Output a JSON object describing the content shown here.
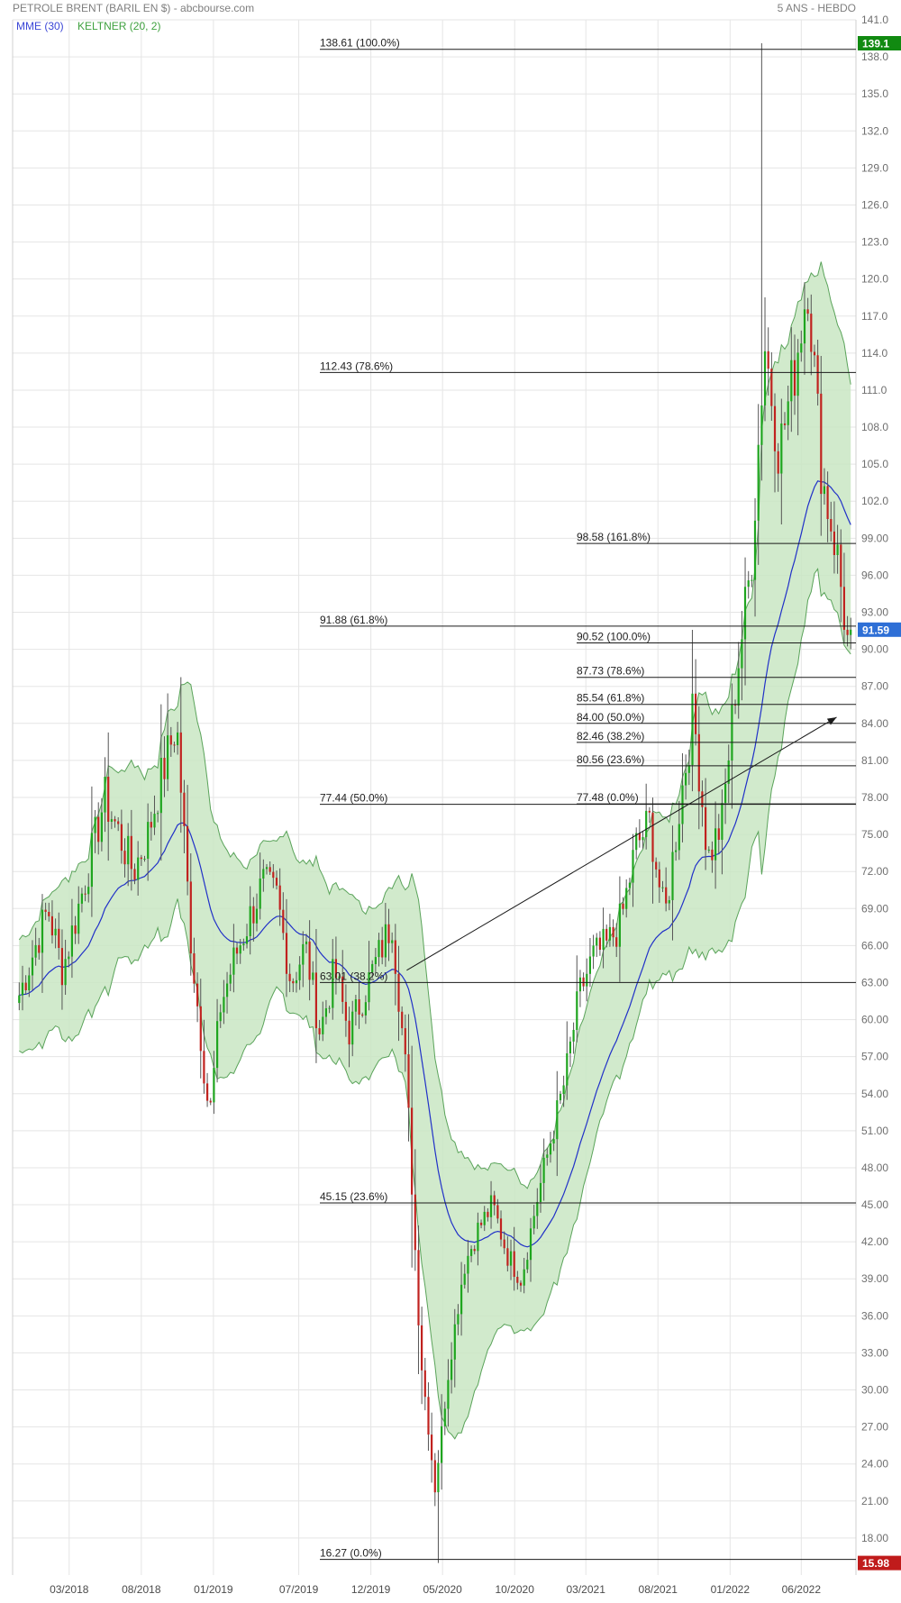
{
  "header": {
    "title": "PETROLE BRENT (BARIL EN $) - abcbourse.com",
    "period": "5 ANS - HEBDO"
  },
  "legend": {
    "mme": "MME (30)",
    "keltner": "KELTNER (20, 2)"
  },
  "colors": {
    "up": "#1fa51f",
    "down": "#c0221f",
    "mme": "#2030c8",
    "keltner_fill": "#c9e6c3",
    "keltner_line": "#5aa35a",
    "grid": "#e5e5e5",
    "max_badge": "#118a11",
    "last_badge": "#2e6fd6",
    "min_badge": "#c01b1b"
  },
  "price_badges": {
    "high": "139.1",
    "last": "91.59",
    "low": "15.98"
  },
  "chart_data": {
    "type": "candlestick",
    "title": "PETROLE BRENT (BARIL EN $)",
    "frequency": "weekly",
    "x_range": [
      "2017-11",
      "2022-09"
    ],
    "x_ticks": [
      "03/2018",
      "08/2018",
      "01/2019",
      "07/2019",
      "12/2019",
      "05/2020",
      "10/2020",
      "03/2021",
      "08/2021",
      "01/2022",
      "06/2022"
    ],
    "ylim": [
      15,
      141
    ],
    "y_ticks": [
      18,
      21,
      24,
      27,
      30,
      33,
      36,
      39,
      42,
      45,
      48,
      51,
      54,
      57,
      60,
      63,
      66,
      69,
      72,
      75,
      78,
      81,
      84,
      87,
      90,
      93,
      96,
      99,
      102,
      105,
      108,
      111,
      114,
      117,
      120,
      123,
      126,
      129,
      132,
      135,
      138,
      141
    ],
    "y_tick_labels": [
      "18.00",
      "21.00",
      "24.00",
      "27.00",
      "30.00",
      "33.00",
      "36.00",
      "39.00",
      "42.00",
      "45.00",
      "48.00",
      "51.00",
      "54.00",
      "57.00",
      "60.00",
      "63.00",
      "66.00",
      "69.00",
      "72.00",
      "75.00",
      "78.00",
      "81.00",
      "84.00",
      "87.00",
      "90.00",
      "93.00",
      "96.00",
      "99.00",
      "102.0",
      "105.0",
      "108.0",
      "111.0",
      "114.0",
      "117.0",
      "120.0",
      "123.0",
      "126.0",
      "129.0",
      "132.0",
      "135.0",
      "138.0",
      "141.0"
    ],
    "grid": true,
    "indicators": [
      "MME (30)",
      "KELTNER (20, 2)"
    ],
    "price_anchors": [
      [
        "2017-11",
        62.0
      ],
      [
        "2018-01",
        69.0
      ],
      [
        "2018-02",
        64.0
      ],
      [
        "2018-04",
        73.0
      ],
      [
        "2018-05",
        78.0
      ],
      [
        "2018-06",
        75.0
      ],
      [
        "2018-07",
        72.0
      ],
      [
        "2018-08",
        75.0
      ],
      [
        "2018-09",
        80.0
      ],
      [
        "2018-10",
        84.0
      ],
      [
        "2018-11",
        66.0
      ],
      [
        "2018-12",
        55.0
      ],
      [
        "2018-12-24",
        52.0
      ],
      [
        "2019-01",
        61.0
      ],
      [
        "2019-02",
        65.0
      ],
      [
        "2019-04",
        71.0
      ],
      [
        "2019-05",
        70.0
      ],
      [
        "2019-06",
        63.0
      ],
      [
        "2019-07",
        66.0
      ],
      [
        "2019-08",
        59.0
      ],
      [
        "2019-09",
        64.0
      ],
      [
        "2019-10",
        59.0
      ],
      [
        "2019-11",
        62.0
      ],
      [
        "2020-01",
        68.0
      ],
      [
        "2020-02",
        55.0
      ],
      [
        "2020-03",
        33.0
      ],
      [
        "2020-04",
        22.0
      ],
      [
        "2020-05",
        32.0
      ],
      [
        "2020-06",
        40.0
      ],
      [
        "2020-07",
        43.0
      ],
      [
        "2020-08",
        45.0
      ],
      [
        "2020-09",
        41.0
      ],
      [
        "2020-10",
        39.0
      ],
      [
        "2020-11",
        45.0
      ],
      [
        "2020-12",
        50.0
      ],
      [
        "2021-01",
        55.0
      ],
      [
        "2021-02",
        62.0
      ],
      [
        "2021-03",
        65.0
      ],
      [
        "2021-04",
        66.0
      ],
      [
        "2021-05",
        68.0
      ],
      [
        "2021-06",
        74.0
      ],
      [
        "2021-07",
        76.0
      ],
      [
        "2021-08",
        68.0
      ],
      [
        "2021-09",
        77.0
      ],
      [
        "2021-10",
        85.0
      ],
      [
        "2021-11",
        73.0
      ],
      [
        "2021-12",
        76.0
      ],
      [
        "2022-01",
        88.0
      ],
      [
        "2022-02",
        97.0
      ],
      [
        "2022-03",
        115.0
      ],
      [
        "2022-04",
        106.0
      ],
      [
        "2022-05",
        112.0
      ],
      [
        "2022-06",
        120.0
      ],
      [
        "2022-07",
        104.0
      ],
      [
        "2022-08",
        98.0
      ],
      [
        "2022-09",
        88.0
      ],
      [
        "2022-09-20",
        91.59
      ]
    ],
    "extremes": {
      "high": 139.1,
      "low": 15.98,
      "last": 91.59
    },
    "fibonacci": [
      {
        "price": 138.61,
        "label": "138.61  (100.0%)",
        "group": "A"
      },
      {
        "price": 112.43,
        "label": "112.43  (78.6%)",
        "group": "A"
      },
      {
        "price": 91.88,
        "label": "91.88  (61.8%)",
        "group": "A"
      },
      {
        "price": 77.44,
        "label": "77.44  (50.0%)",
        "group": "A"
      },
      {
        "price": 63.01,
        "label": "63.01  (38.2%)",
        "group": "A"
      },
      {
        "price": 45.15,
        "label": "45.15  (23.6%)",
        "group": "A"
      },
      {
        "price": 16.27,
        "label": "16.27  (0.0%)",
        "group": "A"
      },
      {
        "price": 98.58,
        "label": "98.58  (161.8%)",
        "group": "B"
      },
      {
        "price": 90.52,
        "label": "90.52  (100.0%)",
        "group": "B"
      },
      {
        "price": 87.73,
        "label": "87.73  (78.6%)",
        "group": "B"
      },
      {
        "price": 85.54,
        "label": "85.54  (61.8%)",
        "group": "B"
      },
      {
        "price": 84.0,
        "label": "84.00  (50.0%)",
        "group": "B"
      },
      {
        "price": 82.46,
        "label": "82.46  (38.2%)",
        "group": "B"
      },
      {
        "price": 80.56,
        "label": "80.56  (23.6%)",
        "group": "B"
      },
      {
        "price": 77.48,
        "label": "77.48  (0.0%)",
        "group": "B"
      }
    ],
    "trend_arrow": {
      "from": [
        "2020-02",
        64.0
      ],
      "to": [
        "2022-08",
        84.5
      ]
    }
  }
}
